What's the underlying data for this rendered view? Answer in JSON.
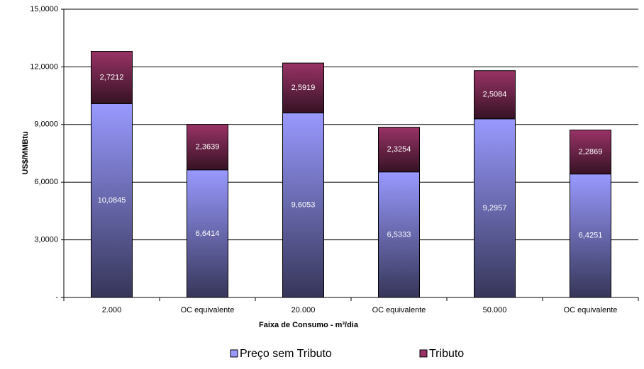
{
  "chart_data": {
    "type": "stacked-bar",
    "y_label": "US$/MMBtu",
    "x_label": "Faixa de Consumo - m³/dia",
    "categories": [
      "2.000",
      "OC equivalente",
      "20.000",
      "OC equivalente",
      "50.000",
      "OC equivalente"
    ],
    "series": [
      {
        "name": "Preço sem Tributo",
        "color": "#9999ff",
        "values": [
          10.0845,
          6.6414,
          9.6053,
          6.5333,
          9.2957,
          6.4251
        ],
        "value_labels": [
          "10,0845",
          "6,6414",
          "9,6053",
          "6,5333",
          "9,2957",
          "6,4251"
        ]
      },
      {
        "name": "Tributo",
        "color": "#993366",
        "values": [
          2.7212,
          2.3639,
          2.5919,
          2.3254,
          2.5084,
          2.2869
        ],
        "value_labels": [
          "2,7212",
          "2,3639",
          "2,5919",
          "2,3254",
          "2,5084",
          "2,2869"
        ]
      }
    ],
    "ylim": [
      0,
      15
    ],
    "yticks": [
      {
        "value": 0,
        "label": "-"
      },
      {
        "value": 3,
        "label": "3,0000"
      },
      {
        "value": 6,
        "label": "6,0000"
      },
      {
        "value": 9,
        "label": "9,0000"
      },
      {
        "value": 12,
        "label": "12,0000"
      },
      {
        "value": 15,
        "label": "15,0000"
      }
    ],
    "grid": true
  }
}
